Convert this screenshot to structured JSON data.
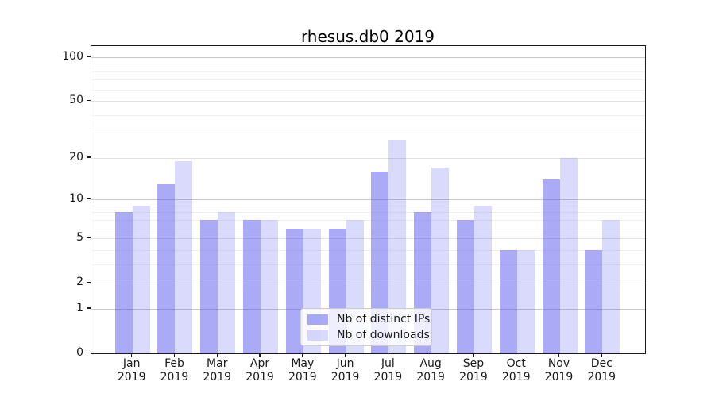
{
  "chart_data": {
    "type": "bar",
    "title": "rhesus.db0 2019",
    "categories": [
      "Jan",
      "Feb",
      "Mar",
      "Apr",
      "May",
      "Jun",
      "Jul",
      "Aug",
      "Sep",
      "Oct",
      "Nov",
      "Dec"
    ],
    "category_year": "2019",
    "series": [
      {
        "name": "Nb of distinct IPs",
        "color": "rgba(85,85,240,0.5)",
        "values": [
          8,
          13,
          7,
          7,
          6,
          6,
          16,
          8,
          7,
          4,
          14,
          4
        ]
      },
      {
        "name": "Nb of downloads",
        "color": "rgba(85,85,240,0.22)",
        "values": [
          9,
          19,
          8,
          7,
          6,
          7,
          27,
          17,
          9,
          4,
          20,
          7
        ]
      }
    ],
    "yscale": "log1p",
    "ylim": [
      0,
      120
    ],
    "yticks": [
      100,
      50,
      20,
      10,
      5,
      2,
      1,
      0
    ],
    "gridlines": {
      "major": [
        1,
        10,
        100
      ],
      "mid": [
        2,
        5,
        20,
        50
      ],
      "minor": [
        3,
        4,
        6,
        7,
        8,
        9,
        30,
        40,
        60,
        70,
        80,
        90
      ]
    },
    "grid_on": true,
    "legend_position": "lower center",
    "accent_color": "#5555f0",
    "xlabel": "",
    "ylabel": ""
  }
}
